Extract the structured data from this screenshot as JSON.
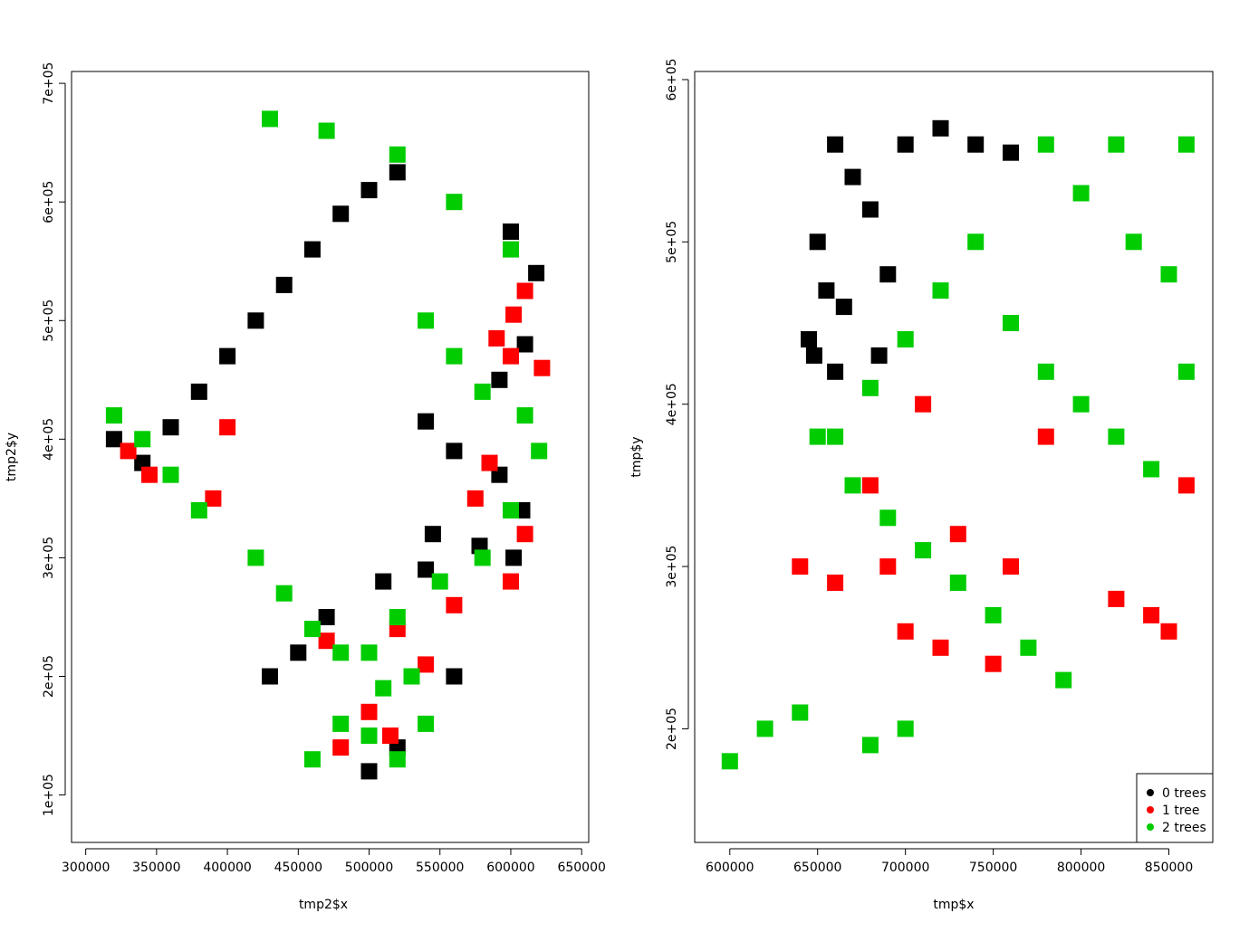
{
  "chart_data": [
    {
      "type": "scatter",
      "title": "",
      "xlabel": "tmp2$x",
      "ylabel": "tmp2$y",
      "xlim": [
        290000,
        655000
      ],
      "ylim": [
        60000,
        710000
      ],
      "xticks": [
        300000,
        350000,
        400000,
        450000,
        500000,
        550000,
        600000,
        650000
      ],
      "xtick_labels": [
        "300000",
        "350000",
        "400000",
        "450000",
        "500000",
        "550000",
        "600000",
        "650000"
      ],
      "yticks": [
        100000,
        200000,
        300000,
        400000,
        500000,
        600000,
        700000
      ],
      "ytick_labels": [
        "1e+05",
        "2e+05",
        "3e+05",
        "4e+05",
        "5e+05",
        "6e+05",
        "7e+05"
      ],
      "legend": null,
      "series": [
        {
          "name": "0 trees",
          "color": "#000000",
          "points": [
            [
              618000,
              540000
            ],
            [
              610000,
              480000
            ],
            [
              592000,
              450000
            ],
            [
              540000,
              415000
            ],
            [
              560000,
              390000
            ],
            [
              592000,
              370000
            ],
            [
              608000,
              340000
            ],
            [
              545000,
              320000
            ],
            [
              540000,
              290000
            ],
            [
              510000,
              280000
            ],
            [
              602000,
              300000
            ],
            [
              578000,
              310000
            ],
            [
              600000,
              575000
            ],
            [
              520000,
              625000
            ],
            [
              500000,
              610000
            ],
            [
              480000,
              590000
            ],
            [
              460000,
              560000
            ],
            [
              440000,
              530000
            ],
            [
              420000,
              500000
            ],
            [
              400000,
              470000
            ],
            [
              380000,
              440000
            ],
            [
              360000,
              410000
            ],
            [
              340000,
              380000
            ],
            [
              320000,
              400000
            ],
            [
              470000,
              250000
            ],
            [
              450000,
              220000
            ],
            [
              430000,
              200000
            ],
            [
              560000,
              200000
            ],
            [
              520000,
              140000
            ],
            [
              500000,
              120000
            ]
          ]
        },
        {
          "name": "1 tree",
          "color": "#ff0000",
          "points": [
            [
              610000,
              525000
            ],
            [
              602000,
              505000
            ],
            [
              590000,
              485000
            ],
            [
              622000,
              460000
            ],
            [
              600000,
              470000
            ],
            [
              585000,
              380000
            ],
            [
              575000,
              350000
            ],
            [
              560000,
              260000
            ],
            [
              520000,
              240000
            ],
            [
              500000,
              170000
            ],
            [
              515000,
              150000
            ],
            [
              480000,
              140000
            ],
            [
              400000,
              410000
            ],
            [
              390000,
              350000
            ],
            [
              345000,
              370000
            ],
            [
              330000,
              390000
            ],
            [
              610000,
              320000
            ],
            [
              600000,
              280000
            ],
            [
              540000,
              210000
            ],
            [
              470000,
              230000
            ]
          ]
        },
        {
          "name": "2 trees",
          "color": "#00cc00",
          "points": [
            [
              480000,
              160000
            ],
            [
              500000,
              150000
            ],
            [
              520000,
              130000
            ],
            [
              540000,
              160000
            ],
            [
              460000,
              130000
            ],
            [
              510000,
              190000
            ],
            [
              480000,
              220000
            ],
            [
              520000,
              250000
            ],
            [
              550000,
              280000
            ],
            [
              580000,
              300000
            ],
            [
              600000,
              340000
            ],
            [
              620000,
              390000
            ],
            [
              610000,
              420000
            ],
            [
              580000,
              440000
            ],
            [
              560000,
              470000
            ],
            [
              540000,
              500000
            ],
            [
              320000,
              420000
            ],
            [
              340000,
              400000
            ],
            [
              360000,
              370000
            ],
            [
              380000,
              340000
            ],
            [
              420000,
              300000
            ],
            [
              440000,
              270000
            ],
            [
              460000,
              240000
            ],
            [
              500000,
              220000
            ],
            [
              530000,
              200000
            ],
            [
              600000,
              560000
            ],
            [
              560000,
              600000
            ],
            [
              520000,
              640000
            ],
            [
              430000,
              670000
            ],
            [
              470000,
              660000
            ]
          ]
        }
      ]
    },
    {
      "type": "scatter",
      "title": "",
      "xlabel": "tmp$x",
      "ylabel": "tmp$y",
      "xlim": [
        580000,
        875000
      ],
      "ylim": [
        130000,
        605000
      ],
      "xticks": [
        600000,
        650000,
        700000,
        750000,
        800000,
        850000
      ],
      "xtick_labels": [
        "600000",
        "650000",
        "700000",
        "750000",
        "800000",
        "850000"
      ],
      "yticks": [
        200000,
        300000,
        400000,
        500000,
        600000
      ],
      "ytick_labels": [
        "2e+05",
        "3e+05",
        "4e+05",
        "5e+05",
        "6e+05"
      ],
      "legend": {
        "position": "bottom-right",
        "entries": [
          "0 trees",
          "1 tree",
          "2 trees"
        ]
      },
      "series": [
        {
          "name": "0 trees",
          "color": "#000000",
          "points": [
            [
              650000,
              500000
            ],
            [
              655000,
              470000
            ],
            [
              648000,
              430000
            ],
            [
              660000,
              560000
            ],
            [
              670000,
              540000
            ],
            [
              680000,
              520000
            ],
            [
              690000,
              480000
            ],
            [
              700000,
              560000
            ],
            [
              720000,
              570000
            ],
            [
              740000,
              560000
            ],
            [
              760000,
              555000
            ],
            [
              645000,
              440000
            ],
            [
              665000,
              460000
            ],
            [
              685000,
              430000
            ],
            [
              660000,
              420000
            ]
          ]
        },
        {
          "name": "1 tree",
          "color": "#ff0000",
          "points": [
            [
              640000,
              300000
            ],
            [
              660000,
              290000
            ],
            [
              700000,
              260000
            ],
            [
              720000,
              250000
            ],
            [
              750000,
              240000
            ],
            [
              820000,
              280000
            ],
            [
              840000,
              270000
            ],
            [
              850000,
              260000
            ],
            [
              680000,
              350000
            ],
            [
              690000,
              300000
            ],
            [
              710000,
              400000
            ],
            [
              730000,
              320000
            ],
            [
              760000,
              300000
            ],
            [
              860000,
              350000
            ],
            [
              780000,
              380000
            ]
          ]
        },
        {
          "name": "2 trees",
          "color": "#00cc00",
          "points": [
            [
              650000,
              380000
            ],
            [
              670000,
              350000
            ],
            [
              690000,
              330000
            ],
            [
              710000,
              310000
            ],
            [
              730000,
              290000
            ],
            [
              750000,
              270000
            ],
            [
              770000,
              250000
            ],
            [
              790000,
              230000
            ],
            [
              700000,
              200000
            ],
            [
              680000,
              190000
            ],
            [
              640000,
              210000
            ],
            [
              600000,
              180000
            ],
            [
              620000,
              200000
            ],
            [
              760000,
              450000
            ],
            [
              780000,
              420000
            ],
            [
              800000,
              400000
            ],
            [
              820000,
              380000
            ],
            [
              840000,
              360000
            ],
            [
              860000,
              420000
            ],
            [
              850000,
              480000
            ],
            [
              830000,
              500000
            ],
            [
              800000,
              530000
            ],
            [
              780000,
              560000
            ],
            [
              820000,
              560000
            ],
            [
              860000,
              560000
            ],
            [
              740000,
              500000
            ],
            [
              720000,
              470000
            ],
            [
              700000,
              440000
            ],
            [
              680000,
              410000
            ],
            [
              660000,
              380000
            ]
          ]
        }
      ]
    }
  ]
}
